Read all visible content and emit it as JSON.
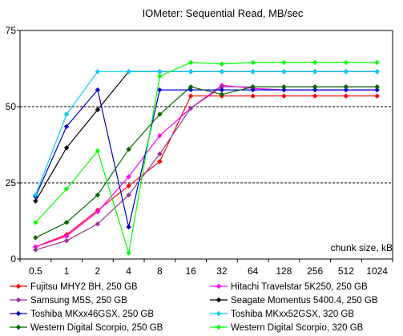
{
  "chart_data": {
    "type": "line",
    "title": "IOMeter: Sequential Read, MB/sec",
    "xlabel": "chunk size, kB",
    "ylabel": "",
    "categories": [
      "0.5",
      "1",
      "2",
      "4",
      "8",
      "16",
      "32",
      "64",
      "128",
      "256",
      "512",
      "1024"
    ],
    "ylim": [
      0,
      75
    ],
    "yticks": [
      "0",
      "25",
      "50",
      "75"
    ],
    "grid": "horizontal dashed at 25 and 50",
    "legend_placement": "bottom",
    "series": [
      {
        "name": "Fujitsu MHY2 BH, 250 GB",
        "color": "#ff0000",
        "values": [
          4,
          8,
          16,
          24,
          32,
          53.5,
          53.5,
          53.5,
          53.5,
          53.5,
          53.5,
          53.5
        ]
      },
      {
        "name": "Hitachi Travelstar 5K250, 250 GB",
        "color": "#ff00ff",
        "values": [
          4,
          7.5,
          15.5,
          27,
          40.5,
          49.5,
          57,
          56,
          55.5,
          55.5,
          55.5,
          55.5
        ]
      },
      {
        "name": "Samsung M5S, 250 GB",
        "color": "#993399",
        "values": [
          3,
          6,
          11.5,
          21,
          34.5,
          49.5,
          56.5,
          56.5,
          56.5,
          56.5,
          56.5,
          56.5
        ]
      },
      {
        "name": "Seagate Momentus 5400.4, 250 GB",
        "color": "#000000",
        "values": [
          19,
          36.5,
          49,
          61.5,
          61.5,
          61.5,
          61.5,
          61.5,
          61.5,
          61.5,
          61.5,
          61.5
        ]
      },
      {
        "name": "Toshiba MKxx46GSX, 250 GB",
        "color": "#0000cc",
        "values": [
          20.5,
          43.5,
          55.5,
          10.5,
          55.5,
          55.5,
          55.5,
          55.5,
          55.5,
          55.5,
          55.5,
          55.5
        ]
      },
      {
        "name": "Toshiba MKxx52GSX, 320 GB",
        "color": "#00ccff",
        "values": [
          21,
          47.5,
          61.5,
          61.5,
          61.5,
          61.5,
          61.5,
          61.5,
          61.5,
          61.5,
          61.5,
          61.5
        ]
      },
      {
        "name": "Western Digital Scorpio, 250 GB",
        "color": "#006600",
        "values": [
          7,
          12,
          21,
          36,
          47.5,
          56.5,
          54,
          56.5,
          56.5,
          56.5,
          56.5,
          56.5
        ]
      },
      {
        "name": "Western Digital Scorpio, 320 GB",
        "color": "#00ff00",
        "values": [
          12,
          23,
          35.5,
          2,
          60,
          64.5,
          64,
          64.5,
          64.5,
          64.5,
          64.5,
          64.5
        ]
      }
    ]
  }
}
